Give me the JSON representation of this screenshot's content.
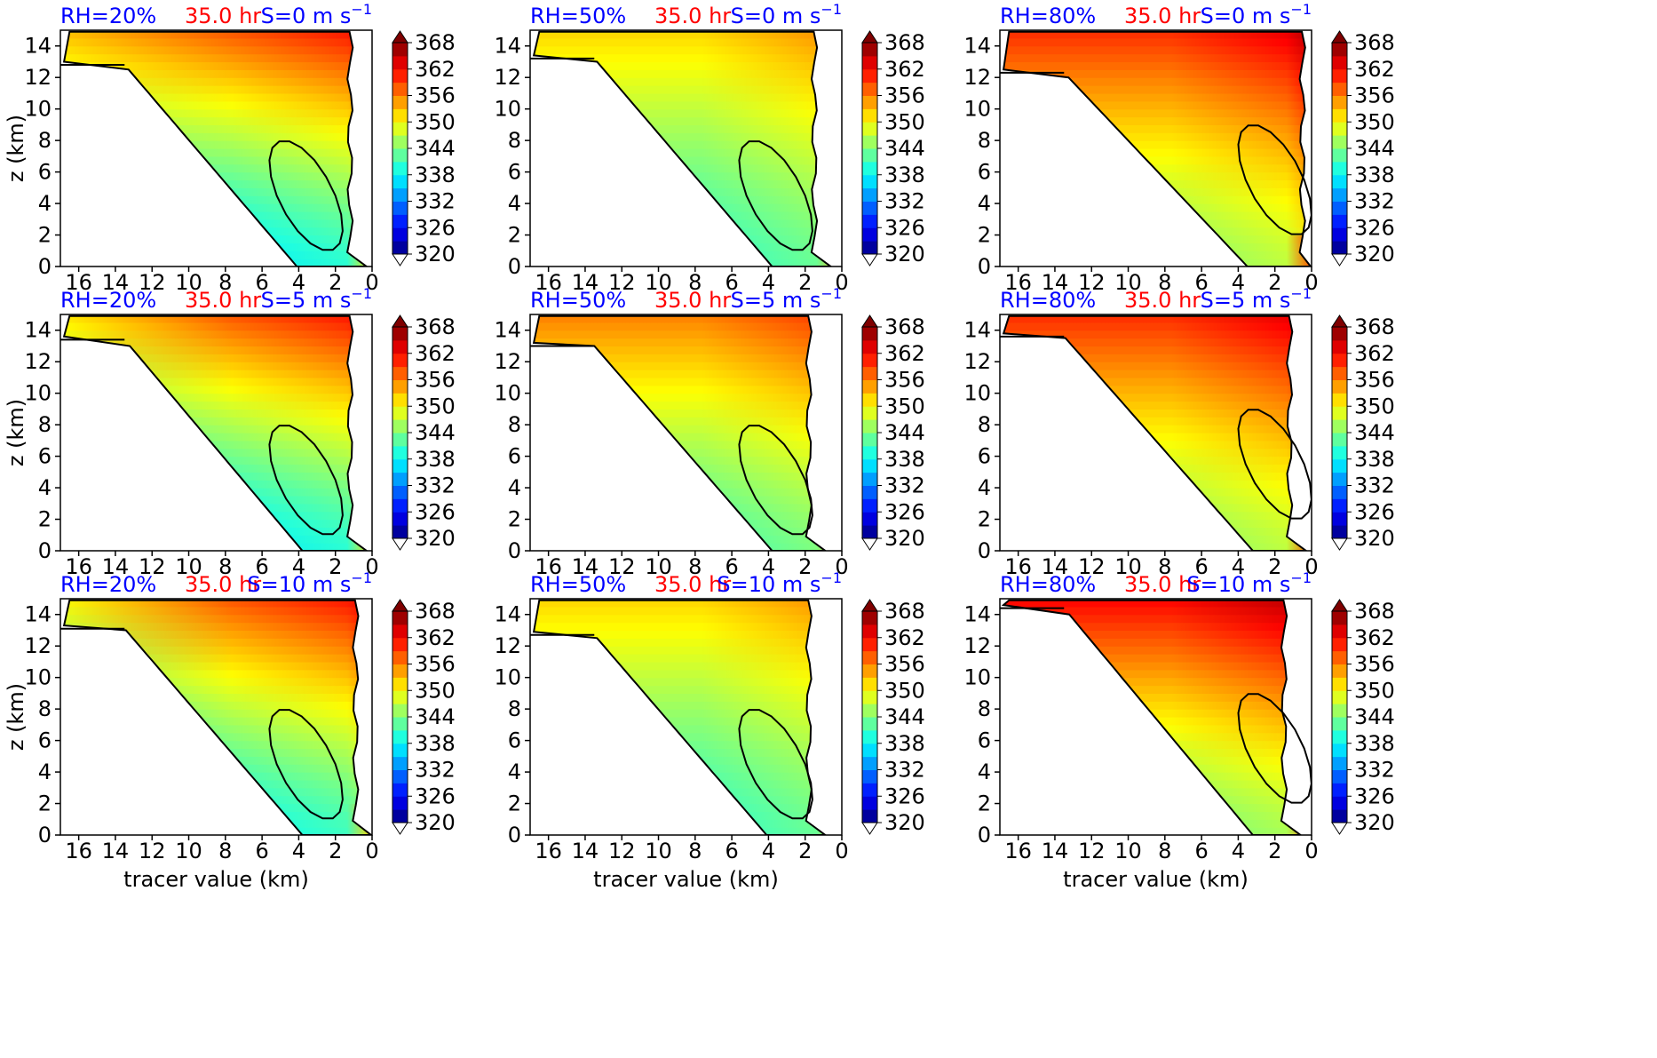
{
  "chart_data": {
    "type": "contour",
    "layout": {
      "rows": 3,
      "cols": 3
    },
    "xlim": [
      17,
      0
    ],
    "ylim": [
      0,
      15
    ],
    "xticks": [
      16,
      14,
      12,
      10,
      8,
      6,
      4,
      2,
      0
    ],
    "yticks": [
      0,
      2,
      4,
      6,
      8,
      10,
      12,
      14
    ],
    "xlabel": "tracer value (km)",
    "ylabel": "z (km)",
    "colorbar": {
      "ticks": [
        320,
        326,
        332,
        338,
        344,
        350,
        356,
        362,
        368
      ],
      "min": 320,
      "max": 368,
      "colormap": [
        "#00007f",
        "#0000ff",
        "#007fff",
        "#00ffff",
        "#7fff7f",
        "#ffff00",
        "#ff7f00",
        "#ff0000",
        "#7f0000"
      ]
    },
    "panels": [
      {
        "rh": "RH=20%",
        "time": "35.0 hr",
        "shear": "S=0 m s",
        "shear_exp": "−1",
        "ztop": 14.9,
        "flat": 12.8,
        "edge": 1.2,
        "lowc": 337,
        "highc": 358,
        "dark": 333
      },
      {
        "rh": "RH=50%",
        "time": "35.0 hr",
        "shear": "S=0 m s",
        "shear_exp": "−1",
        "ztop": 14.9,
        "flat": 13.2,
        "edge": 1.5,
        "lowc": 340,
        "highc": 352,
        "dark": 340
      },
      {
        "rh": "RH=80%",
        "time": "35.0 hr",
        "shear": "S=0 m s",
        "shear_exp": "−1",
        "ztop": 14.9,
        "flat": 12.3,
        "edge": 0.5,
        "lowc": 344,
        "highc": 360,
        "dark": 344
      },
      {
        "rh": "RH=20%",
        "time": "35.0 hr",
        "shear": "S=5 m s",
        "shear_exp": "−1",
        "ztop": 14.9,
        "flat": 13.4,
        "edge": 1.2,
        "lowc": 337,
        "highc": 358,
        "dark": 331
      },
      {
        "rh": "RH=50%",
        "time": "35.0 hr",
        "shear": "S=5 m s",
        "shear_exp": "−1",
        "ztop": 14.9,
        "flat": 13.0,
        "edge": 1.8,
        "lowc": 341,
        "highc": 356,
        "dark": 339
      },
      {
        "rh": "RH=80%",
        "time": "35.0 hr",
        "shear": "S=5 m s",
        "shear_exp": "−1",
        "ztop": 14.9,
        "flat": 13.6,
        "edge": 1.2,
        "lowc": 344,
        "highc": 360,
        "dark": 342
      },
      {
        "rh": "RH=20%",
        "time": "35.0 hr",
        "shear": "S=10 m s",
        "shear_exp": "−1",
        "ztop": 14.9,
        "flat": 13.1,
        "edge": 0.9,
        "lowc": 338,
        "highc": 358,
        "dark": 330
      },
      {
        "rh": "RH=50%",
        "time": "35.0 hr",
        "shear": "S=10 m s",
        "shear_exp": "−1",
        "ztop": 14.9,
        "flat": 12.7,
        "edge": 1.8,
        "lowc": 340,
        "highc": 352,
        "dark": 336
      },
      {
        "rh": "RH=80%",
        "time": "35.0 hr",
        "shear": "S=10 m s",
        "shear_exp": "−1",
        "ztop": 14.9,
        "flat": 14.4,
        "edge": 1.5,
        "lowc": 343,
        "highc": 362,
        "dark": 342
      }
    ]
  }
}
